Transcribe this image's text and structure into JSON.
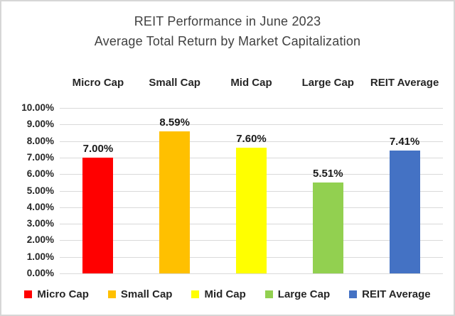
{
  "chart_data": {
    "type": "bar",
    "title_lines": [
      "REIT Performance in June 2023",
      "Average Total Return by Market Capitalization"
    ],
    "categories": [
      "Micro Cap",
      "Small Cap",
      "Mid Cap",
      "Large Cap",
      "REIT Average"
    ],
    "values": [
      7.0,
      8.59,
      7.6,
      5.51,
      7.41
    ],
    "data_labels": [
      "7.00%",
      "8.59%",
      "7.60%",
      "5.51%",
      "7.41%"
    ],
    "bar_colors": [
      "#ff0000",
      "#ffc000",
      "#ffff00",
      "#92d050",
      "#4472c4"
    ],
    "y_ticks": [
      "10.00%",
      "9.00%",
      "8.00%",
      "7.00%",
      "6.00%",
      "5.00%",
      "4.00%",
      "3.00%",
      "2.00%",
      "1.00%",
      "0.00%"
    ],
    "ylim": [
      0,
      10
    ],
    "grid": true,
    "gridline_color": "#d9d9d9",
    "legend_position": "bottom",
    "legend": [
      {
        "label": "Micro Cap",
        "color": "#ff0000"
      },
      {
        "label": "Small Cap",
        "color": "#ffc000"
      },
      {
        "label": "Mid Cap",
        "color": "#ffff00"
      },
      {
        "label": "Large Cap",
        "color": "#92d050"
      },
      {
        "label": "REIT Average",
        "color": "#4472c4"
      }
    ],
    "xlabel": "",
    "ylabel": ""
  }
}
